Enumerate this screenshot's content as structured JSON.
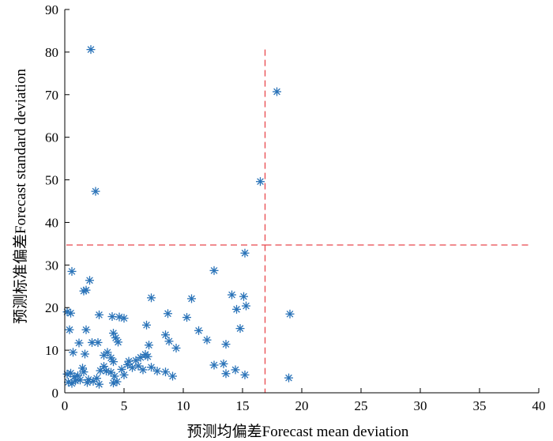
{
  "chart_data": {
    "type": "scatter",
    "title": "",
    "xlabel": "预测均偏差Forecast mean deviation",
    "ylabel": "预测标准偏差Forecast standard deviation",
    "xlim": [
      0,
      40
    ],
    "ylim": [
      0,
      90
    ],
    "x_ticks": [
      "0",
      "5",
      "10",
      "15",
      "20",
      "25",
      "30",
      "35",
      "40"
    ],
    "y_ticks": [
      "0",
      "10",
      "20",
      "30",
      "40",
      "50",
      "60",
      "70",
      "80",
      "90"
    ],
    "grid": false,
    "marker": "asterisk",
    "marker_color": "#2a73b8",
    "threshold_color": "#e8474c",
    "thresholds": {
      "x": 16.9,
      "y": 34.7
    },
    "series": [
      {
        "points": [
          [
            2.2,
            80.6
          ],
          [
            17.9,
            70.7
          ],
          [
            2.6,
            47.3
          ],
          [
            16.5,
            49.6
          ],
          [
            15.2,
            32.8
          ],
          [
            0.6,
            28.5
          ],
          [
            12.6,
            28.7
          ],
          [
            2.1,
            26.4
          ],
          [
            1.6,
            23.9
          ],
          [
            1.8,
            24.1
          ],
          [
            7.3,
            22.3
          ],
          [
            10.7,
            22.1
          ],
          [
            14.1,
            23.0
          ],
          [
            15.1,
            22.6
          ],
          [
            0.2,
            19.0
          ],
          [
            0.5,
            18.7
          ],
          [
            2.9,
            18.3
          ],
          [
            4.0,
            17.9
          ],
          [
            4.6,
            17.8
          ],
          [
            5.0,
            17.5
          ],
          [
            8.7,
            18.6
          ],
          [
            10.3,
            17.7
          ],
          [
            14.5,
            19.6
          ],
          [
            15.3,
            20.4
          ],
          [
            19.0,
            18.5
          ],
          [
            0.4,
            14.8
          ],
          [
            1.8,
            14.8
          ],
          [
            4.1,
            14.0
          ],
          [
            6.9,
            15.9
          ],
          [
            11.3,
            14.6
          ],
          [
            14.8,
            15.1
          ],
          [
            1.2,
            11.7
          ],
          [
            2.3,
            11.8
          ],
          [
            2.8,
            11.8
          ],
          [
            4.3,
            12.9
          ],
          [
            4.5,
            11.9
          ],
          [
            7.1,
            11.2
          ],
          [
            8.5,
            13.6
          ],
          [
            8.8,
            12.1
          ],
          [
            9.4,
            10.5
          ],
          [
            12.0,
            12.4
          ],
          [
            13.6,
            11.4
          ],
          [
            0.7,
            9.5
          ],
          [
            1.7,
            9.1
          ],
          [
            3.3,
            8.8
          ],
          [
            3.6,
            9.5
          ],
          [
            3.9,
            8.2
          ],
          [
            4.1,
            7.3
          ],
          [
            5.4,
            7.4
          ],
          [
            6.0,
            7.6
          ],
          [
            6.4,
            8.3
          ],
          [
            6.8,
            9.0
          ],
          [
            7.0,
            8.5
          ],
          [
            0.2,
            4.4
          ],
          [
            0.5,
            4.6
          ],
          [
            0.8,
            3.8
          ],
          [
            1.1,
            4.0
          ],
          [
            1.5,
            5.8
          ],
          [
            1.6,
            4.9
          ],
          [
            2.0,
            3.1
          ],
          [
            2.4,
            2.7
          ],
          [
            2.7,
            3.4
          ],
          [
            3.0,
            5.2
          ],
          [
            3.3,
            6.2
          ],
          [
            3.5,
            5.1
          ],
          [
            3.9,
            4.8
          ],
          [
            4.2,
            3.9
          ],
          [
            4.4,
            2.6
          ],
          [
            4.8,
            5.5
          ],
          [
            5.0,
            4.2
          ],
          [
            5.3,
            6.6
          ],
          [
            5.7,
            5.9
          ],
          [
            6.2,
            6.3
          ],
          [
            6.6,
            5.4
          ],
          [
            7.3,
            6.0
          ],
          [
            7.8,
            5.1
          ],
          [
            8.5,
            4.9
          ],
          [
            9.1,
            3.9
          ],
          [
            12.6,
            6.5
          ],
          [
            13.4,
            6.8
          ],
          [
            13.6,
            4.5
          ],
          [
            14.4,
            5.4
          ],
          [
            15.2,
            4.2
          ],
          [
            18.9,
            3.5
          ],
          [
            0.3,
            2.5
          ],
          [
            0.6,
            2.2
          ],
          [
            0.9,
            2.8
          ],
          [
            1.3,
            3.0
          ],
          [
            1.9,
            2.4
          ],
          [
            2.9,
            2.0
          ],
          [
            4.1,
            2.3
          ]
        ]
      }
    ]
  }
}
